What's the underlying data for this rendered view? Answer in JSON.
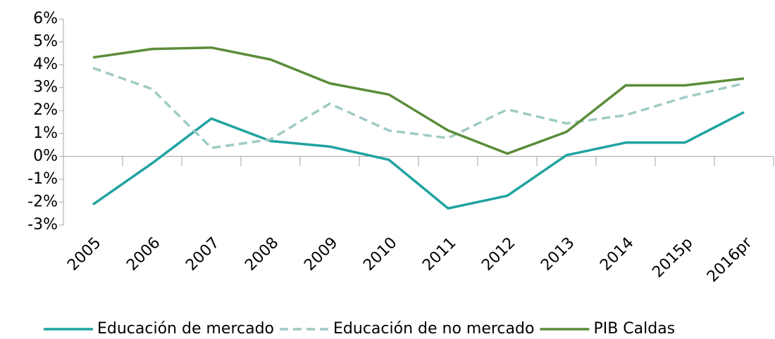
{
  "chart_data": {
    "type": "line",
    "categories": [
      "2005",
      "2006",
      "2007",
      "2008",
      "2009",
      "2010",
      "2011",
      "2012",
      "2013",
      "2014",
      "2015p",
      "2016pr"
    ],
    "series": [
      {
        "name": "Educación de mercado",
        "color": "#1fa3a0",
        "style": "solid",
        "values": [
          -2.1,
          -0.3,
          1.65,
          0.67,
          0.43,
          -0.15,
          -2.27,
          -1.72,
          0.05,
          0.6,
          0.6,
          1.93
        ]
      },
      {
        "name": "Educación de no mercado",
        "color": "#9fcbc5",
        "style": "dashed",
        "values": [
          3.86,
          2.94,
          0.37,
          0.74,
          2.3,
          1.13,
          0.8,
          2.05,
          1.44,
          1.8,
          2.58,
          3.19
        ]
      },
      {
        "name": "PIB Caldas",
        "color": "#5b8c3a",
        "style": "solid",
        "values": [
          4.32,
          4.69,
          4.75,
          4.23,
          3.19,
          2.7,
          1.13,
          0.12,
          1.07,
          3.1,
          3.1,
          3.4
        ]
      }
    ],
    "ylim": [
      -3,
      6
    ],
    "yticks": [
      {
        "value": -3,
        "label": "-3%"
      },
      {
        "value": -2,
        "label": "-2%"
      },
      {
        "value": -1,
        "label": "-1%"
      },
      {
        "value": 0,
        "label": "0%"
      },
      {
        "value": 1,
        "label": "1%"
      },
      {
        "value": 2,
        "label": "2%"
      },
      {
        "value": 3,
        "label": "3%"
      },
      {
        "value": 4,
        "label": "4%"
      },
      {
        "value": 5,
        "label": "5%"
      },
      {
        "value": 6,
        "label": "6%"
      }
    ],
    "grid": false,
    "legend": "bottom"
  }
}
